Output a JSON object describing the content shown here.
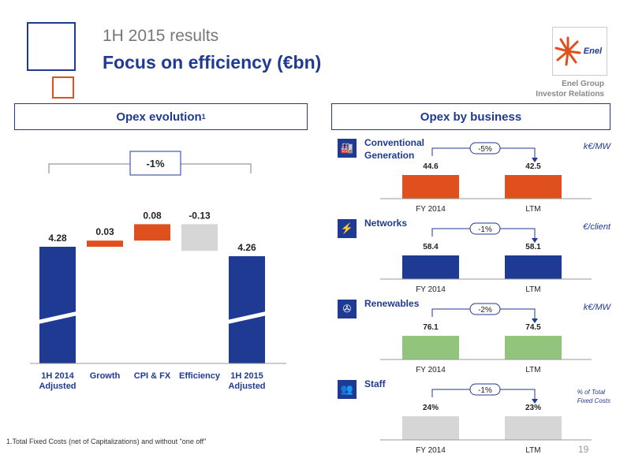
{
  "header": {
    "supertitle": "1H 2015 results",
    "title": "Focus on efficiency (€bn)",
    "logo_text": "Enel",
    "group_line1": "Enel Group",
    "group_line2": "Investor Relations"
  },
  "left_panel": {
    "title": "Opex evolution",
    "title_sup": "1",
    "bracket_label": "-1%"
  },
  "right_panel": {
    "title": "Opex by business"
  },
  "footnote": "1.Total Fixed Costs (net of Capitalizations) and without \"one off\"",
  "page_number": "19",
  "colors": {
    "blue": "#1f3a93",
    "orange": "#e0501e",
    "grey": "#d6d6d6",
    "green": "#93c47d"
  },
  "chart_data": [
    {
      "type": "bar",
      "subtype": "waterfall",
      "categories": [
        "1H 2014\nAdjusted",
        "Growth",
        "CPI & FX",
        "Efficiency",
        "1H 2015\nAdjusted"
      ],
      "values": [
        4.28,
        0.03,
        0.08,
        -0.13,
        4.26
      ],
      "value_labels": [
        "4.28",
        "0.03",
        "0.08",
        "-0.13",
        "4.26"
      ],
      "bar_kinds": [
        "total",
        "delta",
        "delta",
        "delta",
        "total"
      ],
      "bar_colors": [
        "#1f3a93",
        "#e0501e",
        "#e0501e",
        "#d6d6d6",
        "#1f3a93"
      ],
      "axis_break": true,
      "annotation": "-1%"
    },
    {
      "type": "bar",
      "business": "Conventional Generation",
      "label_lines": [
        "Conventional",
        "Generation"
      ],
      "icon": "power-plant-icon",
      "unit": "k€/MW",
      "categories": [
        "FY 2014",
        "LTM"
      ],
      "values": [
        44.6,
        42.5
      ],
      "value_labels": [
        "44.6",
        "42.5"
      ],
      "change": "-5%",
      "color": "#e0501e"
    },
    {
      "type": "bar",
      "business": "Networks",
      "label_lines": [
        "Networks"
      ],
      "icon": "pylon-icon",
      "unit": "€/client",
      "categories": [
        "FY 2014",
        "LTM"
      ],
      "values": [
        58.4,
        58.1
      ],
      "value_labels": [
        "58.4",
        "58.1"
      ],
      "change": "-1%",
      "color": "#1f3a93"
    },
    {
      "type": "bar",
      "business": "Renewables",
      "label_lines": [
        "Renewables"
      ],
      "icon": "wind-turbine-icon",
      "unit": "k€/MW",
      "categories": [
        "FY 2014",
        "LTM"
      ],
      "values": [
        76.1,
        74.5
      ],
      "value_labels": [
        "76.1",
        "74.5"
      ],
      "change": "-2%",
      "color": "#93c47d"
    },
    {
      "type": "bar",
      "business": "Staff",
      "label_lines": [
        "Staff"
      ],
      "icon": "people-icon",
      "unit_lines": [
        "% of Total",
        "Fixed Costs"
      ],
      "categories": [
        "FY 2014",
        "LTM"
      ],
      "values": [
        24,
        23
      ],
      "value_labels": [
        "24%",
        "23%"
      ],
      "change": "-1%",
      "color": "#d6d6d6"
    }
  ]
}
